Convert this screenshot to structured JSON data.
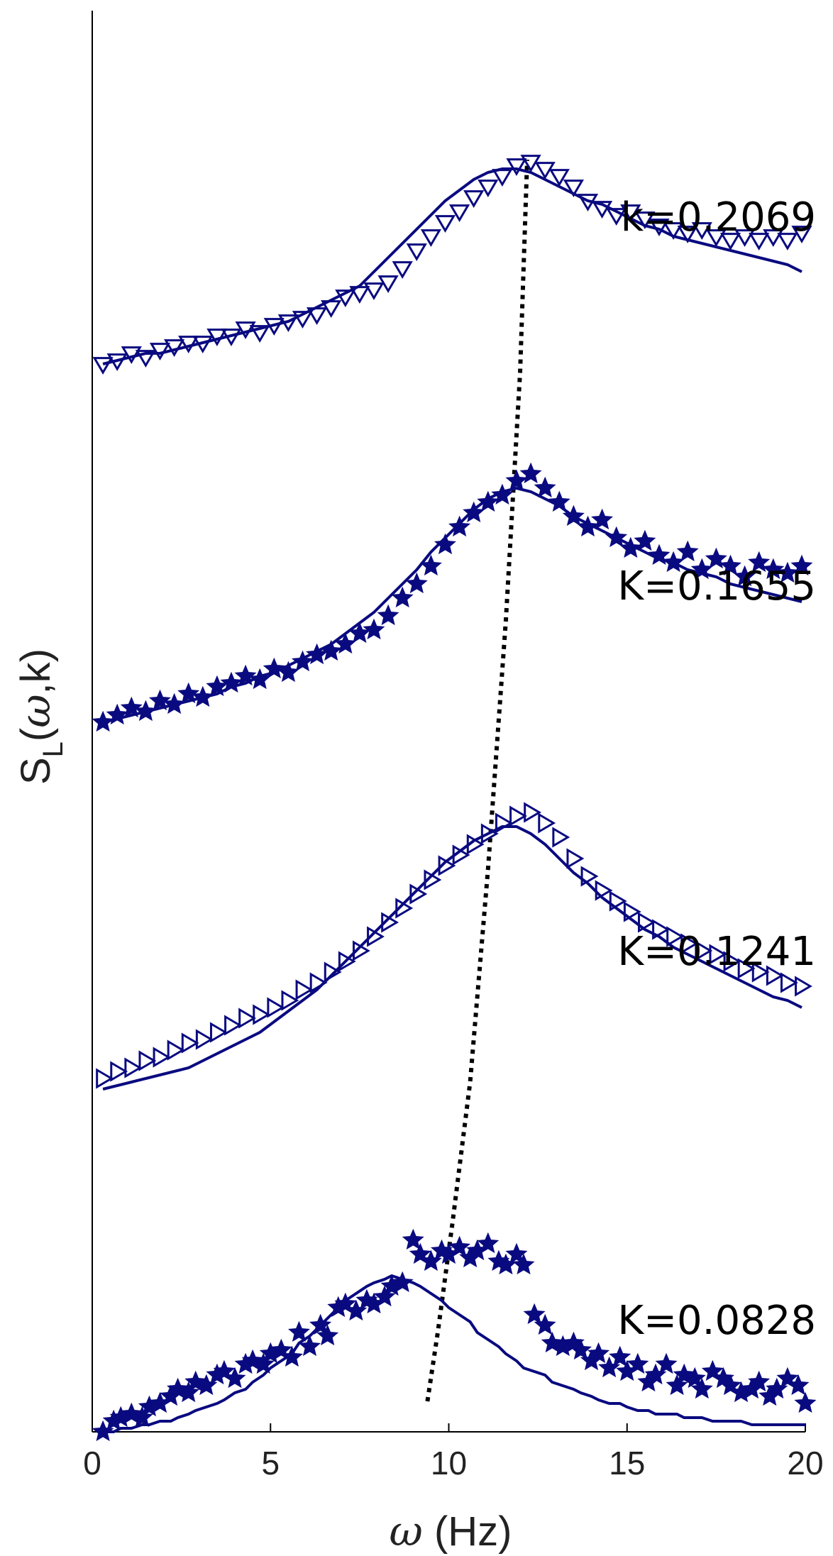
{
  "chart_data": {
    "type": "scatter",
    "xlabel": {
      "symbol": "ω",
      "unit": " (Hz)"
    },
    "ylabel": {
      "S": "S",
      "sub": "L",
      "paren_open": "(",
      "symbol": "ω",
      "rest": ",k)"
    },
    "xlim": [
      0,
      20
    ],
    "xticks": [
      0,
      5,
      10,
      15,
      20
    ],
    "grid": false,
    "legend": "none",
    "colors": {
      "series": "#0a0a80",
      "peak_line": "#000000",
      "axis": "#000000"
    },
    "peak_guide": {
      "style": "dotted",
      "points": [
        [
          9.4,
          0.0
        ],
        [
          9.7,
          0.2
        ],
        [
          10.1,
          0.5
        ],
        [
          10.6,
          0.9
        ],
        [
          11.1,
          1.5
        ],
        [
          11.6,
          2.2
        ],
        [
          12.0,
          2.9
        ],
        [
          12.2,
          3.5
        ]
      ]
    },
    "series": [
      {
        "name": "K=0.0828",
        "marker": "star",
        "offset": 0,
        "x": [
          0.3,
          0.6,
          0.8,
          1.1,
          1.4,
          1.6,
          1.9,
          2.2,
          2.4,
          2.7,
          2.9,
          3.2,
          3.5,
          3.7,
          4.0,
          4.3,
          4.5,
          4.8,
          5.0,
          5.3,
          5.6,
          5.8,
          6.1,
          6.4,
          6.6,
          6.9,
          7.1,
          7.4,
          7.7,
          7.9,
          8.2,
          8.4,
          8.7,
          9.0,
          9.2,
          9.5,
          9.8,
          10.0,
          10.3,
          10.6,
          10.8,
          11.1,
          11.4,
          11.6,
          11.9,
          12.1,
          12.4,
          12.7,
          12.9,
          13.2,
          13.5,
          13.7,
          14.0,
          14.2,
          14.5,
          14.8,
          15.0,
          15.3,
          15.6,
          15.8,
          16.1,
          16.4,
          16.6,
          16.9,
          17.1,
          17.4,
          17.7,
          17.9,
          18.2,
          18.5,
          18.7,
          19.0,
          19.2,
          19.5,
          19.8,
          20.0
        ],
        "y": [
          0.0,
          0.03,
          0.04,
          0.05,
          0.04,
          0.07,
          0.08,
          0.1,
          0.12,
          0.11,
          0.14,
          0.13,
          0.16,
          0.17,
          0.15,
          0.19,
          0.2,
          0.19,
          0.22,
          0.23,
          0.21,
          0.28,
          0.24,
          0.3,
          0.27,
          0.35,
          0.36,
          0.34,
          0.37,
          0.36,
          0.38,
          0.41,
          0.42,
          0.54,
          0.5,
          0.48,
          0.51,
          0.5,
          0.52,
          0.49,
          0.51,
          0.53,
          0.48,
          0.47,
          0.5,
          0.47,
          0.33,
          0.3,
          0.25,
          0.24,
          0.25,
          0.23,
          0.2,
          0.22,
          0.18,
          0.21,
          0.17,
          0.19,
          0.14,
          0.16,
          0.19,
          0.13,
          0.16,
          0.15,
          0.12,
          0.17,
          0.15,
          0.13,
          0.11,
          0.12,
          0.14,
          0.1,
          0.12,
          0.15,
          0.13,
          0.08
        ],
        "fit_y": [
          0.0,
          0.0,
          0.01,
          0.01,
          0.02,
          0.02,
          0.03,
          0.03,
          0.04,
          0.05,
          0.06,
          0.07,
          0.08,
          0.09,
          0.11,
          0.12,
          0.14,
          0.16,
          0.18,
          0.2,
          0.22,
          0.25,
          0.27,
          0.3,
          0.32,
          0.35,
          0.37,
          0.39,
          0.41,
          0.42,
          0.43,
          0.44,
          0.43,
          0.42,
          0.41,
          0.39,
          0.37,
          0.35,
          0.33,
          0.31,
          0.28,
          0.26,
          0.24,
          0.22,
          0.2,
          0.18,
          0.17,
          0.16,
          0.14,
          0.13,
          0.12,
          0.11,
          0.1,
          0.09,
          0.08,
          0.08,
          0.07,
          0.06,
          0.06,
          0.05,
          0.05,
          0.05,
          0.04,
          0.04,
          0.04,
          0.03,
          0.03,
          0.03,
          0.03,
          0.02,
          0.02,
          0.02,
          0.02,
          0.02,
          0.02,
          0.02
        ]
      },
      {
        "name": "K=0.1241",
        "marker": "triangle-right",
        "offset": 1,
        "x": [
          0.3,
          0.7,
          1.1,
          1.5,
          1.9,
          2.3,
          2.7,
          3.1,
          3.5,
          3.9,
          4.3,
          4.7,
          5.1,
          5.5,
          5.9,
          6.3,
          6.7,
          7.1,
          7.5,
          7.9,
          8.3,
          8.7,
          9.1,
          9.5,
          9.9,
          10.3,
          10.7,
          11.1,
          11.5,
          11.9,
          12.3,
          12.7,
          13.1,
          13.5,
          13.9,
          14.3,
          14.7,
          15.1,
          15.5,
          15.9,
          16.3,
          16.7,
          17.1,
          17.5,
          17.9,
          18.3,
          18.7,
          19.1,
          19.5,
          19.9
        ],
        "y": [
          0.0,
          0.02,
          0.03,
          0.05,
          0.06,
          0.08,
          0.1,
          0.11,
          0.13,
          0.15,
          0.17,
          0.18,
          0.2,
          0.22,
          0.25,
          0.27,
          0.3,
          0.33,
          0.36,
          0.4,
          0.44,
          0.48,
          0.52,
          0.56,
          0.6,
          0.63,
          0.66,
          0.69,
          0.72,
          0.74,
          0.75,
          0.72,
          0.68,
          0.62,
          0.57,
          0.53,
          0.5,
          0.47,
          0.44,
          0.42,
          0.4,
          0.38,
          0.36,
          0.35,
          0.33,
          0.31,
          0.3,
          0.29,
          0.27,
          0.26
        ],
        "fit_y": [
          -0.03,
          -0.02,
          -0.01,
          0.0,
          0.01,
          0.02,
          0.03,
          0.05,
          0.07,
          0.09,
          0.11,
          0.13,
          0.16,
          0.19,
          0.22,
          0.25,
          0.29,
          0.33,
          0.37,
          0.41,
          0.45,
          0.49,
          0.53,
          0.57,
          0.61,
          0.64,
          0.67,
          0.69,
          0.71,
          0.71,
          0.69,
          0.66,
          0.62,
          0.58,
          0.55,
          0.51,
          0.48,
          0.45,
          0.42,
          0.4,
          0.37,
          0.35,
          0.33,
          0.31,
          0.29,
          0.27,
          0.25,
          0.23,
          0.22,
          0.2
        ]
      },
      {
        "name": "K=0.1655",
        "marker": "star",
        "offset": 2,
        "x": [
          0.3,
          0.7,
          1.1,
          1.5,
          1.9,
          2.3,
          2.7,
          3.1,
          3.5,
          3.9,
          4.3,
          4.7,
          5.1,
          5.5,
          5.9,
          6.3,
          6.7,
          7.1,
          7.5,
          7.9,
          8.3,
          8.7,
          9.1,
          9.5,
          9.9,
          10.3,
          10.7,
          11.1,
          11.5,
          11.9,
          12.3,
          12.7,
          13.1,
          13.5,
          13.9,
          14.3,
          14.7,
          15.1,
          15.5,
          15.9,
          16.3,
          16.7,
          17.1,
          17.5,
          17.9,
          18.3,
          18.7,
          19.1,
          19.5,
          19.9
        ],
        "y": [
          0.0,
          0.02,
          0.04,
          0.03,
          0.06,
          0.05,
          0.08,
          0.07,
          0.1,
          0.11,
          0.13,
          0.12,
          0.15,
          0.14,
          0.17,
          0.19,
          0.2,
          0.22,
          0.25,
          0.26,
          0.3,
          0.35,
          0.39,
          0.44,
          0.5,
          0.55,
          0.59,
          0.62,
          0.64,
          0.68,
          0.7,
          0.66,
          0.62,
          0.58,
          0.55,
          0.57,
          0.52,
          0.49,
          0.51,
          0.47,
          0.45,
          0.48,
          0.43,
          0.46,
          0.44,
          0.41,
          0.45,
          0.43,
          0.42,
          0.44
        ],
        "fit_y": [
          0.0,
          0.01,
          0.02,
          0.03,
          0.04,
          0.05,
          0.06,
          0.07,
          0.08,
          0.1,
          0.11,
          0.13,
          0.14,
          0.16,
          0.18,
          0.2,
          0.22,
          0.25,
          0.28,
          0.31,
          0.35,
          0.39,
          0.43,
          0.48,
          0.52,
          0.56,
          0.6,
          0.63,
          0.65,
          0.66,
          0.65,
          0.63,
          0.61,
          0.58,
          0.56,
          0.54,
          0.52,
          0.5,
          0.48,
          0.46,
          0.45,
          0.43,
          0.42,
          0.41,
          0.39,
          0.38,
          0.37,
          0.36,
          0.35,
          0.34
        ]
      },
      {
        "name": "k=0.2069",
        "marker": "triangle-down",
        "offset": 3,
        "x": [
          0.3,
          0.7,
          1.1,
          1.5,
          1.9,
          2.3,
          2.7,
          3.1,
          3.5,
          3.9,
          4.3,
          4.7,
          5.1,
          5.5,
          5.9,
          6.3,
          6.7,
          7.1,
          7.5,
          7.9,
          8.3,
          8.7,
          9.1,
          9.5,
          9.9,
          10.3,
          10.7,
          11.1,
          11.5,
          11.9,
          12.3,
          12.7,
          13.1,
          13.5,
          13.9,
          14.3,
          14.7,
          15.1,
          15.5,
          15.9,
          16.3,
          16.7,
          17.1,
          17.5,
          17.9,
          18.3,
          18.7,
          19.1,
          19.5,
          19.9
        ],
        "y": [
          0.0,
          0.01,
          0.03,
          0.02,
          0.04,
          0.05,
          0.06,
          0.06,
          0.08,
          0.08,
          0.1,
          0.09,
          0.11,
          0.12,
          0.13,
          0.14,
          0.16,
          0.19,
          0.2,
          0.21,
          0.23,
          0.27,
          0.32,
          0.36,
          0.4,
          0.43,
          0.47,
          0.5,
          0.53,
          0.56,
          0.57,
          0.55,
          0.53,
          0.5,
          0.46,
          0.44,
          0.42,
          0.43,
          0.41,
          0.39,
          0.38,
          0.37,
          0.38,
          0.36,
          0.35,
          0.36,
          0.35,
          0.36,
          0.35,
          0.37
        ],
        "fit_y": [
          0.0,
          0.01,
          0.02,
          0.03,
          0.03,
          0.04,
          0.05,
          0.06,
          0.07,
          0.08,
          0.09,
          0.1,
          0.11,
          0.12,
          0.14,
          0.16,
          0.18,
          0.2,
          0.22,
          0.26,
          0.3,
          0.34,
          0.38,
          0.42,
          0.46,
          0.49,
          0.52,
          0.54,
          0.55,
          0.55,
          0.54,
          0.52,
          0.5,
          0.48,
          0.46,
          0.45,
          0.43,
          0.41,
          0.39,
          0.38,
          0.36,
          0.35,
          0.34,
          0.33,
          0.32,
          0.31,
          0.3,
          0.29,
          0.28,
          0.26
        ]
      }
    ]
  }
}
